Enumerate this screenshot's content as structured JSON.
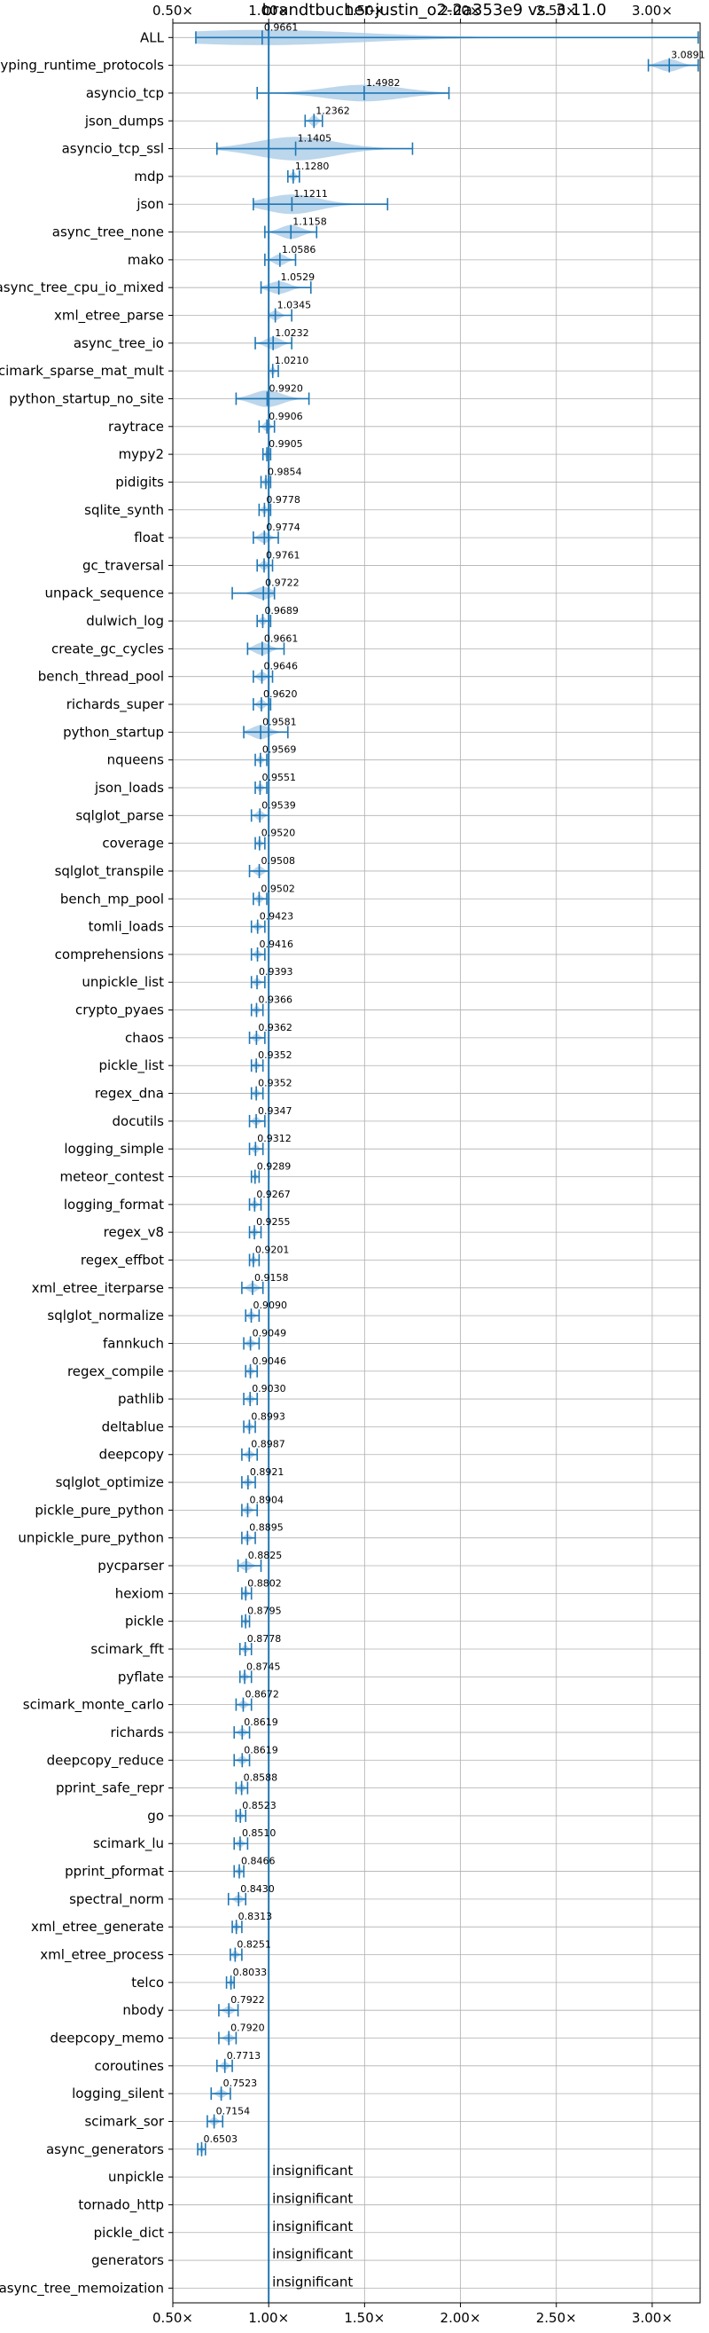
{
  "chart_data": {
    "type": "violin",
    "title": "brandtbucher-justin_o2-2a353e9 vs. 3.11.0",
    "xlim": [
      0.5,
      3.25
    ],
    "x_ticks": [
      0.5,
      1.0,
      1.5,
      2.0,
      2.5,
      3.0
    ],
    "x_tick_labels": [
      "0.50×",
      "1.00×",
      "1.50×",
      "2.00×",
      "2.50×",
      "3.00×"
    ],
    "grid": true,
    "reference_line": 1.0,
    "colors": {
      "violin": "#a6c8e6",
      "line": "#1f77b4",
      "grid": "#b0b0b0"
    },
    "insignificant_text": "insignificant",
    "benchmarks": [
      {
        "name": "ALL",
        "value": 0.9661,
        "label": "0.9661",
        "min": 0.62,
        "max": 3.24,
        "width": 0.55
      },
      {
        "name": "typing_runtime_protocols",
        "value": 3.0891,
        "label": "3.0891",
        "min": 2.98,
        "max": 3.24,
        "width": 0.45
      },
      {
        "name": "asyncio_tcp",
        "value": 1.4982,
        "label": "1.4982",
        "min": 0.94,
        "max": 1.94,
        "width": 0.6
      },
      {
        "name": "json_dumps",
        "value": 1.2362,
        "label": "1.2362",
        "min": 1.19,
        "max": 1.28,
        "width": 0.4
      },
      {
        "name": "asyncio_tcp_ssl",
        "value": 1.1405,
        "label": "1.1405",
        "min": 0.73,
        "max": 1.75,
        "width": 0.85
      },
      {
        "name": "mdp",
        "value": 1.128,
        "label": "1.1280",
        "min": 1.1,
        "max": 1.16,
        "width": 0.35
      },
      {
        "name": "json",
        "value": 1.1211,
        "label": "1.1211",
        "min": 0.92,
        "max": 1.62,
        "width": 0.7
      },
      {
        "name": "async_tree_none",
        "value": 1.1158,
        "label": "1.1158",
        "min": 0.98,
        "max": 1.25,
        "width": 0.5
      },
      {
        "name": "mako",
        "value": 1.0586,
        "label": "1.0586",
        "min": 0.98,
        "max": 1.14,
        "width": 0.4
      },
      {
        "name": "async_tree_cpu_io_mixed",
        "value": 1.0529,
        "label": "1.0529",
        "min": 0.96,
        "max": 1.22,
        "width": 0.45
      },
      {
        "name": "xml_etree_parse",
        "value": 1.0345,
        "label": "1.0345",
        "min": 1.0,
        "max": 1.12,
        "width": 0.35
      },
      {
        "name": "async_tree_io",
        "value": 1.0232,
        "label": "1.0232",
        "min": 0.93,
        "max": 1.12,
        "width": 0.45
      },
      {
        "name": "scimark_sparse_mat_mult",
        "value": 1.021,
        "label": "1.0210",
        "min": 1.0,
        "max": 1.05,
        "width": 0.3
      },
      {
        "name": "python_startup_no_site",
        "value": 0.992,
        "label": "0.9920",
        "min": 0.83,
        "max": 1.21,
        "width": 0.6
      },
      {
        "name": "raytrace",
        "value": 0.9906,
        "label": "0.9906",
        "min": 0.95,
        "max": 1.03,
        "width": 0.35
      },
      {
        "name": "mypy2",
        "value": 0.9905,
        "label": "0.9905",
        "min": 0.97,
        "max": 1.01,
        "width": 0.3
      },
      {
        "name": "pidigits",
        "value": 0.9854,
        "label": "0.9854",
        "min": 0.96,
        "max": 1.01,
        "width": 0.3
      },
      {
        "name": "sqlite_synth",
        "value": 0.9778,
        "label": "0.9778",
        "min": 0.95,
        "max": 1.01,
        "width": 0.3
      },
      {
        "name": "float",
        "value": 0.9774,
        "label": "0.9774",
        "min": 0.92,
        "max": 1.05,
        "width": 0.4
      },
      {
        "name": "gc_traversal",
        "value": 0.9761,
        "label": "0.9761",
        "min": 0.94,
        "max": 1.02,
        "width": 0.35
      },
      {
        "name": "unpack_sequence",
        "value": 0.9722,
        "label": "0.9722",
        "min": 0.81,
        "max": 1.03,
        "width": 0.45
      },
      {
        "name": "dulwich_log",
        "value": 0.9689,
        "label": "0.9689",
        "min": 0.94,
        "max": 1.01,
        "width": 0.3
      },
      {
        "name": "create_gc_cycles",
        "value": 0.9661,
        "label": "0.9661",
        "min": 0.89,
        "max": 1.08,
        "width": 0.45
      },
      {
        "name": "bench_thread_pool",
        "value": 0.9646,
        "label": "0.9646",
        "min": 0.92,
        "max": 1.02,
        "width": 0.35
      },
      {
        "name": "richards_super",
        "value": 0.962,
        "label": "0.9620",
        "min": 0.92,
        "max": 1.01,
        "width": 0.35
      },
      {
        "name": "python_startup",
        "value": 0.9581,
        "label": "0.9581",
        "min": 0.87,
        "max": 1.1,
        "width": 0.5
      },
      {
        "name": "nqueens",
        "value": 0.9569,
        "label": "0.9569",
        "min": 0.93,
        "max": 0.99,
        "width": 0.3
      },
      {
        "name": "json_loads",
        "value": 0.9551,
        "label": "0.9551",
        "min": 0.93,
        "max": 0.99,
        "width": 0.3
      },
      {
        "name": "sqlglot_parse",
        "value": 0.9539,
        "label": "0.9539",
        "min": 0.91,
        "max": 1.0,
        "width": 0.35
      },
      {
        "name": "coverage",
        "value": 0.952,
        "label": "0.9520",
        "min": 0.93,
        "max": 0.98,
        "width": 0.3
      },
      {
        "name": "sqlglot_transpile",
        "value": 0.9508,
        "label": "0.9508",
        "min": 0.9,
        "max": 1.0,
        "width": 0.35
      },
      {
        "name": "bench_mp_pool",
        "value": 0.9502,
        "label": "0.9502",
        "min": 0.92,
        "max": 0.99,
        "width": 0.3
      },
      {
        "name": "tomli_loads",
        "value": 0.9423,
        "label": "0.9423",
        "min": 0.91,
        "max": 0.98,
        "width": 0.3
      },
      {
        "name": "comprehensions",
        "value": 0.9416,
        "label": "0.9416",
        "min": 0.91,
        "max": 0.98,
        "width": 0.3
      },
      {
        "name": "unpickle_list",
        "value": 0.9393,
        "label": "0.9393",
        "min": 0.91,
        "max": 0.98,
        "width": 0.3
      },
      {
        "name": "crypto_pyaes",
        "value": 0.9366,
        "label": "0.9366",
        "min": 0.91,
        "max": 0.97,
        "width": 0.3
      },
      {
        "name": "chaos",
        "value": 0.9362,
        "label": "0.9362",
        "min": 0.9,
        "max": 0.98,
        "width": 0.3
      },
      {
        "name": "pickle_list",
        "value": 0.9352,
        "label": "0.9352",
        "min": 0.91,
        "max": 0.97,
        "width": 0.3
      },
      {
        "name": "regex_dna",
        "value": 0.9352,
        "label": "0.9352",
        "min": 0.91,
        "max": 0.97,
        "width": 0.3
      },
      {
        "name": "docutils",
        "value": 0.9347,
        "label": "0.9347",
        "min": 0.9,
        "max": 0.98,
        "width": 0.3
      },
      {
        "name": "logging_simple",
        "value": 0.9312,
        "label": "0.9312",
        "min": 0.9,
        "max": 0.97,
        "width": 0.3
      },
      {
        "name": "meteor_contest",
        "value": 0.9289,
        "label": "0.9289",
        "min": 0.91,
        "max": 0.95,
        "width": 0.25
      },
      {
        "name": "logging_format",
        "value": 0.9267,
        "label": "0.9267",
        "min": 0.9,
        "max": 0.96,
        "width": 0.3
      },
      {
        "name": "regex_v8",
        "value": 0.9255,
        "label": "0.9255",
        "min": 0.9,
        "max": 0.96,
        "width": 0.3
      },
      {
        "name": "regex_effbot",
        "value": 0.9201,
        "label": "0.9201",
        "min": 0.9,
        "max": 0.95,
        "width": 0.3
      },
      {
        "name": "xml_etree_iterparse",
        "value": 0.9158,
        "label": "0.9158",
        "min": 0.86,
        "max": 0.97,
        "width": 0.35
      },
      {
        "name": "sqlglot_normalize",
        "value": 0.909,
        "label": "0.9090",
        "min": 0.88,
        "max": 0.95,
        "width": 0.3
      },
      {
        "name": "fannkuch",
        "value": 0.9049,
        "label": "0.9049",
        "min": 0.87,
        "max": 0.95,
        "width": 0.3
      },
      {
        "name": "regex_compile",
        "value": 0.9046,
        "label": "0.9046",
        "min": 0.88,
        "max": 0.94,
        "width": 0.3
      },
      {
        "name": "pathlib",
        "value": 0.903,
        "label": "0.9030",
        "min": 0.87,
        "max": 0.94,
        "width": 0.3
      },
      {
        "name": "deltablue",
        "value": 0.8993,
        "label": "0.8993",
        "min": 0.87,
        "max": 0.93,
        "width": 0.3
      },
      {
        "name": "deepcopy",
        "value": 0.8987,
        "label": "0.8987",
        "min": 0.86,
        "max": 0.94,
        "width": 0.3
      },
      {
        "name": "sqlglot_optimize",
        "value": 0.8921,
        "label": "0.8921",
        "min": 0.86,
        "max": 0.93,
        "width": 0.3
      },
      {
        "name": "pickle_pure_python",
        "value": 0.8904,
        "label": "0.8904",
        "min": 0.86,
        "max": 0.94,
        "width": 0.3
      },
      {
        "name": "unpickle_pure_python",
        "value": 0.8895,
        "label": "0.8895",
        "min": 0.86,
        "max": 0.93,
        "width": 0.3
      },
      {
        "name": "pycparser",
        "value": 0.8825,
        "label": "0.8825",
        "min": 0.84,
        "max": 0.96,
        "width": 0.35
      },
      {
        "name": "hexiom",
        "value": 0.8802,
        "label": "0.8802",
        "min": 0.86,
        "max": 0.91,
        "width": 0.3
      },
      {
        "name": "pickle",
        "value": 0.8795,
        "label": "0.8795",
        "min": 0.86,
        "max": 0.9,
        "width": 0.3
      },
      {
        "name": "scimark_fft",
        "value": 0.8778,
        "label": "0.8778",
        "min": 0.85,
        "max": 0.91,
        "width": 0.3
      },
      {
        "name": "pyflate",
        "value": 0.8745,
        "label": "0.8745",
        "min": 0.85,
        "max": 0.91,
        "width": 0.3
      },
      {
        "name": "scimark_monte_carlo",
        "value": 0.8672,
        "label": "0.8672",
        "min": 0.83,
        "max": 0.91,
        "width": 0.3
      },
      {
        "name": "richards",
        "value": 0.8619,
        "label": "0.8619",
        "min": 0.82,
        "max": 0.9,
        "width": 0.3
      },
      {
        "name": "deepcopy_reduce",
        "value": 0.8619,
        "label": "0.8619",
        "min": 0.82,
        "max": 0.9,
        "width": 0.3
      },
      {
        "name": "pprint_safe_repr",
        "value": 0.8588,
        "label": "0.8588",
        "min": 0.83,
        "max": 0.89,
        "width": 0.3
      },
      {
        "name": "go",
        "value": 0.8523,
        "label": "0.8523",
        "min": 0.83,
        "max": 0.88,
        "width": 0.3
      },
      {
        "name": "scimark_lu",
        "value": 0.851,
        "label": "0.8510",
        "min": 0.82,
        "max": 0.89,
        "width": 0.3
      },
      {
        "name": "pprint_pformat",
        "value": 0.8466,
        "label": "0.8466",
        "min": 0.82,
        "max": 0.87,
        "width": 0.3
      },
      {
        "name": "spectral_norm",
        "value": 0.843,
        "label": "0.8430",
        "min": 0.79,
        "max": 0.88,
        "width": 0.3
      },
      {
        "name": "xml_etree_generate",
        "value": 0.8313,
        "label": "0.8313",
        "min": 0.81,
        "max": 0.86,
        "width": 0.3
      },
      {
        "name": "xml_etree_process",
        "value": 0.8251,
        "label": "0.8251",
        "min": 0.8,
        "max": 0.86,
        "width": 0.3
      },
      {
        "name": "telco",
        "value": 0.8033,
        "label": "0.8033",
        "min": 0.78,
        "max": 0.82,
        "width": 0.3
      },
      {
        "name": "nbody",
        "value": 0.7922,
        "label": "0.7922",
        "min": 0.74,
        "max": 0.84,
        "width": 0.3
      },
      {
        "name": "deepcopy_memo",
        "value": 0.792,
        "label": "0.7920",
        "min": 0.74,
        "max": 0.83,
        "width": 0.3
      },
      {
        "name": "coroutines",
        "value": 0.7713,
        "label": "0.7713",
        "min": 0.73,
        "max": 0.81,
        "width": 0.3
      },
      {
        "name": "logging_silent",
        "value": 0.7523,
        "label": "0.7523",
        "min": 0.7,
        "max": 0.8,
        "width": 0.3
      },
      {
        "name": "scimark_sor",
        "value": 0.7154,
        "label": "0.7154",
        "min": 0.68,
        "max": 0.76,
        "width": 0.3
      },
      {
        "name": "async_generators",
        "value": 0.6503,
        "label": "0.6503",
        "min": 0.63,
        "max": 0.67,
        "width": 0.3
      },
      {
        "name": "unpickle",
        "insignificant": true
      },
      {
        "name": "tornado_http",
        "insignificant": true
      },
      {
        "name": "pickle_dict",
        "insignificant": true
      },
      {
        "name": "generators",
        "insignificant": true
      },
      {
        "name": "async_tree_memoization",
        "insignificant": true
      }
    ]
  }
}
